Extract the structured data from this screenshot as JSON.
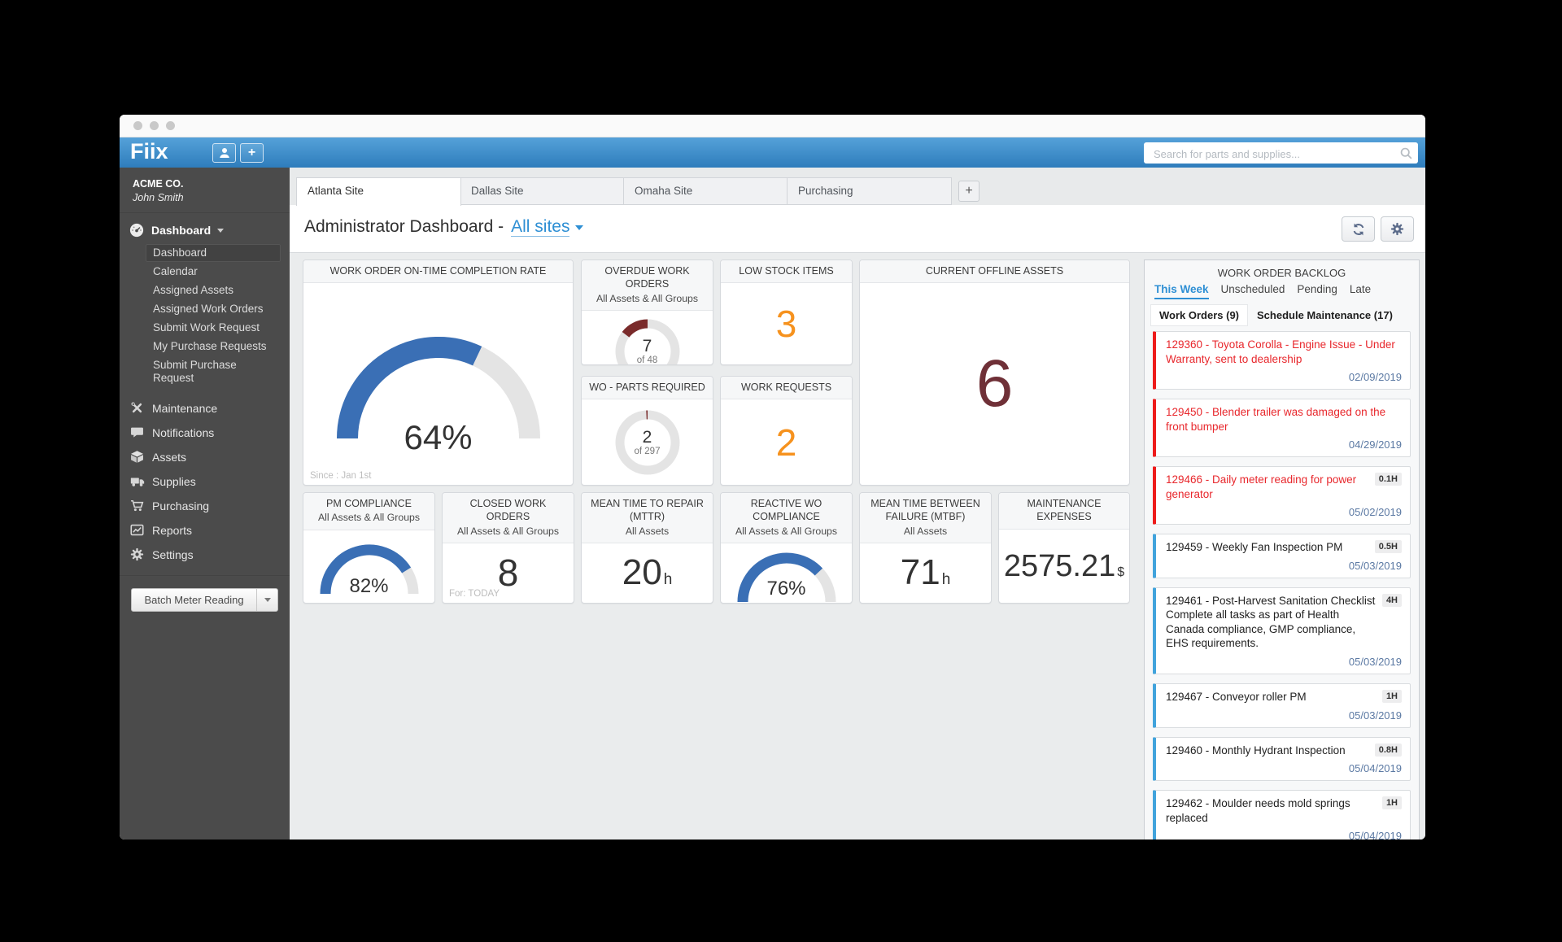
{
  "appbar": {
    "logo": "Fiix",
    "buttons": [
      {
        "icon": "user-icon"
      },
      {
        "icon": "plus-icon",
        "label": "+"
      }
    ],
    "search": {
      "placeholder": "Search for parts and supplies..."
    }
  },
  "sidebar": {
    "company": "ACME CO.",
    "user": "John Smith",
    "group_label": "Dashboard",
    "group_icon": "gauge-icon",
    "submenu": [
      {
        "label": "Dashboard",
        "active": true
      },
      {
        "label": "Calendar"
      },
      {
        "label": "Assigned Assets"
      },
      {
        "label": "Assigned Work Orders"
      },
      {
        "label": "Submit Work Request"
      },
      {
        "label": "My Purchase Requests"
      },
      {
        "label": "Submit Purchase Request"
      }
    ],
    "items": [
      {
        "label": "Maintenance",
        "icon": "tools-icon"
      },
      {
        "label": "Notifications",
        "icon": "chat-bubble-icon"
      },
      {
        "label": "Assets",
        "icon": "box-icon"
      },
      {
        "label": "Supplies",
        "icon": "truck-icon"
      },
      {
        "label": "Purchasing",
        "icon": "cart-icon"
      },
      {
        "label": "Reports",
        "icon": "chart-icon"
      },
      {
        "label": "Settings",
        "icon": "gear-icon"
      }
    ],
    "batch_button": "Batch Meter Reading"
  },
  "tabs": {
    "sites": [
      {
        "label": "Atlanta Site",
        "active": true
      },
      {
        "label": "Dallas Site"
      },
      {
        "label": "Omaha Site"
      },
      {
        "label": "Purchasing"
      }
    ],
    "add_label": "+"
  },
  "page": {
    "title": "Administrator Dashboard -",
    "site_filter": "All sites"
  },
  "colors": {
    "gauge_blue": "#3a6fb5",
    "gauge_track": "#e4e4e4",
    "donut_maroon": "#7a2b2b",
    "orange": "#f6921e",
    "maroon": "#6f3037",
    "late_red": "#e8272c",
    "scheduled_blue": "#41a3dc"
  },
  "widgets": [
    {
      "slot": "a",
      "type": "gauge_large",
      "title": "WORK ORDER ON-TIME COMPLETION RATE",
      "pct": 64,
      "value_label": "64%",
      "footnote": "Since : Jan 1st"
    },
    {
      "slot": "b",
      "type": "donut",
      "title": "OVERDUE WORK ORDERS",
      "subtitle": "All Assets & All Groups",
      "value": 7,
      "total": 48,
      "value_label": "7",
      "total_label": "of 48"
    },
    {
      "slot": "c",
      "type": "donut",
      "title": "WO - PARTS REQUIRED",
      "value": 2,
      "total": 297,
      "value_label": "2",
      "total_label": "of 297"
    },
    {
      "slot": "d",
      "type": "number",
      "title": "LOW STOCK ITEMS",
      "value_label": "3",
      "color": "#f6921e",
      "size": 46
    },
    {
      "slot": "e",
      "type": "number",
      "title": "WORK REQUESTS",
      "value_label": "2",
      "color": "#f6921e",
      "size": 46
    },
    {
      "slot": "f",
      "type": "number",
      "title": "CURRENT OFFLINE ASSETS",
      "value_label": "6",
      "color": "#6f3037",
      "size": 82
    },
    {
      "slot": "g",
      "type": "gauge_small",
      "title": "PM COMPLIANCE",
      "subtitle": "All Assets & All Groups",
      "pct": 82,
      "value_label": "82%"
    },
    {
      "slot": "h",
      "type": "number",
      "title": "CLOSED WORK ORDERS",
      "subtitle": "All Assets & All Groups",
      "value_label": "8",
      "color": "#333333",
      "size": 46,
      "footnote": "For: TODAY"
    },
    {
      "slot": "i",
      "type": "number_unit",
      "title": "MEAN TIME TO REPAIR (MTTR)",
      "subtitle": "All Assets",
      "value_label": "20",
      "unit": "h"
    },
    {
      "slot": "j",
      "type": "gauge_small",
      "title": "REACTIVE WO COMPLIANCE",
      "subtitle": "All Assets & All Groups",
      "pct": 76,
      "value_label": "76%"
    },
    {
      "slot": "k",
      "type": "number_unit",
      "title": "MEAN TIME BETWEEN FAILURE (MTBF)",
      "subtitle": "All Assets",
      "value_label": "71",
      "unit": "h"
    },
    {
      "slot": "l",
      "type": "number_unit",
      "title": "MAINTENANCE EXPENSES",
      "value_label": "2575.21",
      "unit": "$",
      "value_size": 38,
      "unit_size": 16
    }
  ],
  "backlog": {
    "title": "WORK ORDER BACKLOG",
    "tabs": [
      {
        "label": "This Week",
        "active": true
      },
      {
        "label": "Unscheduled"
      },
      {
        "label": "Pending"
      },
      {
        "label": "Late"
      }
    ],
    "subtabs": [
      {
        "label": "Work Orders (9)",
        "active": true
      },
      {
        "label": "Schedule Maintenance (17)"
      }
    ],
    "items": [
      {
        "text": "129360 - Toyota Corolla - Engine Issue - Under Warranty, sent to dealership",
        "hours": "",
        "date": "02/09/2019",
        "status": "late"
      },
      {
        "text": "129450 - Blender trailer was damaged on the front bumper",
        "hours": "",
        "date": "04/29/2019",
        "status": "late"
      },
      {
        "text": "129466 - Daily meter reading for power generator",
        "hours": "0.1H",
        "date": "05/02/2019",
        "status": "late"
      },
      {
        "text": "129459 - Weekly Fan Inspection PM",
        "hours": "0.5H",
        "date": "05/03/2019",
        "status": "scheduled"
      },
      {
        "text": "129461 - Post-Harvest Sanitation Checklist",
        "text2": "Complete all tasks as part of Health Canada compliance, GMP compliance, EHS requirements.",
        "hours": "4H",
        "date": "05/03/2019",
        "status": "scheduled"
      },
      {
        "text": "129467 - Conveyor roller PM",
        "hours": "1H",
        "date": "05/03/2019",
        "status": "scheduled"
      },
      {
        "text": "129460 - Monthly Hydrant Inspection",
        "hours": "0.8H",
        "date": "05/04/2019",
        "status": "scheduled"
      },
      {
        "text": "129462 - Moulder needs mold springs replaced",
        "hours": "1H",
        "date": "05/04/2019",
        "status": "scheduled"
      },
      {
        "text": "",
        "hours": "",
        "date": "",
        "status": "scheduled",
        "partial": true
      }
    ]
  }
}
